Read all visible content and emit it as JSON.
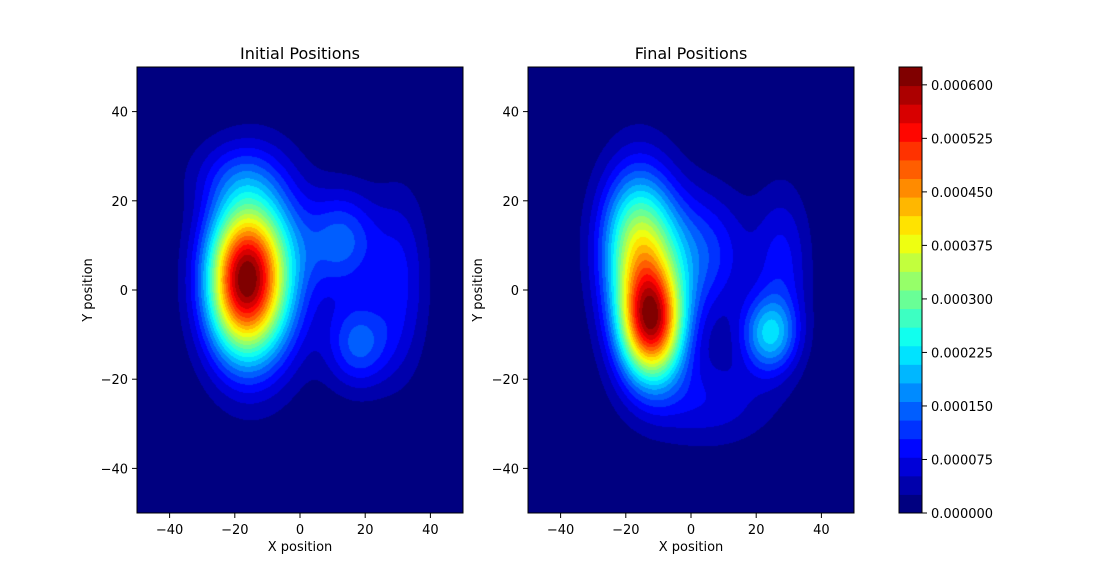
{
  "chart_data": {
    "type": "contour",
    "colormap": "jet",
    "colorbar": {
      "vmin": 0,
      "vmax": 0.000625,
      "levels": 24,
      "tick_values": [
        0,
        7.5e-05,
        0.00015,
        0.000225,
        0.0003,
        0.000375,
        0.00045,
        0.000525,
        0.0006
      ],
      "tick_labels": [
        "0.000000",
        "0.000075",
        "0.000150",
        "0.000225",
        "0.000300",
        "0.000375",
        "0.000450",
        "0.000525",
        "0.000600"
      ]
    },
    "panels": [
      {
        "title": "Initial Positions",
        "xlabel": "X position",
        "ylabel": "Y position",
        "xlim": [
          -50,
          50
        ],
        "ylim": [
          -50,
          50
        ],
        "xticks": [
          -40,
          -20,
          0,
          20,
          40
        ],
        "yticks": [
          -40,
          -20,
          0,
          20,
          40
        ],
        "peak_density": 0.00063,
        "components": [
          {
            "x": -18,
            "y": 2,
            "sx": 8,
            "sy": 12,
            "w": 0.48
          },
          {
            "x": -10,
            "y": 4,
            "sx": 9,
            "sy": 14,
            "w": 0.22
          },
          {
            "x": 13,
            "y": 11,
            "sx": 8,
            "sy": 8,
            "w": 0.14
          },
          {
            "x": 18,
            "y": -12,
            "sx": 7,
            "sy": 7,
            "w": 0.14
          },
          {
            "x": 31,
            "y": 2,
            "sx": 6,
            "sy": 14,
            "w": 0.08
          },
          {
            "x": -20,
            "y": 26,
            "sx": 10,
            "sy": 6,
            "w": 0.06
          }
        ]
      },
      {
        "title": "Final Positions",
        "xlabel": "X position",
        "ylabel": "Y position",
        "xlim": [
          -50,
          50
        ],
        "ylim": [
          -50,
          50
        ],
        "xticks": [
          -40,
          -20,
          0,
          20,
          40
        ],
        "yticks": [
          -40,
          -20,
          0,
          20,
          40
        ],
        "peak_density": 0.00063,
        "components": [
          {
            "x": -12,
            "y": -8,
            "sx": 7,
            "sy": 9,
            "w": 0.42
          },
          {
            "x": -16,
            "y": 10,
            "sx": 8,
            "sy": 12,
            "w": 0.28
          },
          {
            "x": 3,
            "y": 8,
            "sx": 10,
            "sy": 10,
            "w": 0.1
          },
          {
            "x": 24,
            "y": -10,
            "sx": 6,
            "sy": 6,
            "w": 0.16
          },
          {
            "x": 28,
            "y": 6,
            "sx": 6,
            "sy": 12,
            "w": 0.07
          },
          {
            "x": 5,
            "y": -25,
            "sx": 14,
            "sy": 7,
            "w": 0.06
          }
        ]
      }
    ]
  }
}
